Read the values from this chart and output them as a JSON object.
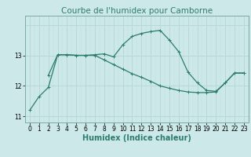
{
  "title": "Courbe de l'humidex pour Camborne",
  "xlabel": "Humidex (Indice chaleur)",
  "background_color": "#cce8e8",
  "grid_color": "#b8d8d8",
  "line_color": "#2d7d6e",
  "line1_x": [
    0,
    1,
    2,
    3,
    4,
    5,
    6,
    7,
    8,
    9,
    10,
    11,
    12,
    13,
    14,
    15,
    16,
    17,
    18,
    19,
    20,
    21,
    22,
    23
  ],
  "line1_y": [
    11.2,
    11.65,
    11.95,
    13.02,
    13.02,
    13.0,
    13.0,
    13.02,
    13.05,
    12.95,
    13.35,
    13.62,
    13.72,
    13.78,
    13.82,
    13.5,
    13.12,
    12.45,
    12.1,
    11.85,
    11.82,
    12.1,
    12.42,
    12.42
  ],
  "line2_x": [
    2,
    3,
    4,
    5,
    6,
    7,
    8,
    9,
    10,
    11,
    12,
    13,
    14,
    15,
    16,
    17,
    18,
    19,
    20,
    21,
    22,
    23
  ],
  "line2_y": [
    12.35,
    13.02,
    13.02,
    13.0,
    13.0,
    13.0,
    12.85,
    12.7,
    12.55,
    12.4,
    12.28,
    12.15,
    12.0,
    11.92,
    11.85,
    11.8,
    11.78,
    11.78,
    11.8,
    12.1,
    12.42,
    12.42
  ],
  "ylim": [
    10.8,
    14.3
  ],
  "xlim": [
    -0.5,
    23.5
  ],
  "yticks": [
    11,
    12,
    13
  ],
  "xticks": [
    0,
    1,
    2,
    3,
    4,
    5,
    6,
    7,
    8,
    9,
    10,
    11,
    12,
    13,
    14,
    15,
    16,
    17,
    18,
    19,
    20,
    21,
    22,
    23
  ],
  "title_fontsize": 7.5,
  "tick_fontsize": 5.5,
  "xlabel_fontsize": 7.0
}
